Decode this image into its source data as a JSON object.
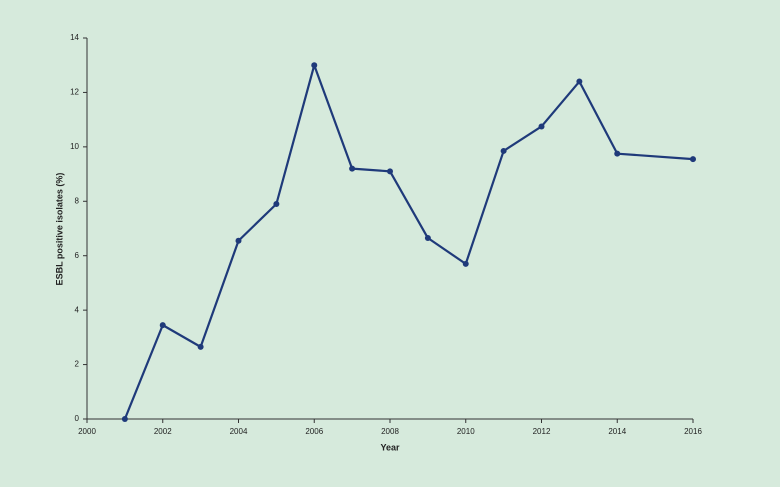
{
  "chart_data": {
    "type": "line",
    "x_label": "Year",
    "y_label": "ESBL positive isolates (%)",
    "x": [
      2001,
      2002,
      2003,
      2004,
      2005,
      2006,
      2007,
      2008,
      2009,
      2010,
      2011,
      2012,
      2013,
      2014,
      2016
    ],
    "series": [
      {
        "name": "ESBL positive isolates",
        "color": "#1f3a7a",
        "values": [
          0,
          3.45,
          2.65,
          6.55,
          7.9,
          13.0,
          9.2,
          9.1,
          6.65,
          5.7,
          9.85,
          10.75,
          12.4,
          9.75,
          9.55
        ]
      }
    ],
    "xlim": [
      2000,
      2016
    ],
    "xticks": [
      2000,
      2002,
      2004,
      2006,
      2008,
      2010,
      2012,
      2014,
      2016
    ],
    "ylim": [
      0,
      14
    ],
    "yticks": [
      0,
      2,
      4,
      6,
      8,
      10,
      12,
      14
    ]
  }
}
